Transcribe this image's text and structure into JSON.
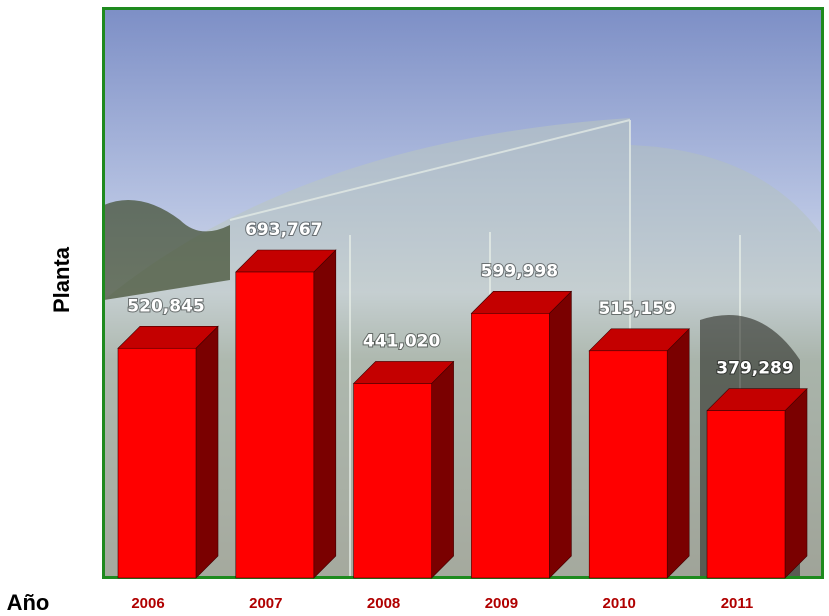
{
  "chart_data": {
    "type": "bar3d",
    "x_label": "Año",
    "y_label": "Planta",
    "categories": [
      "2006",
      "2007",
      "2008",
      "2009",
      "2010",
      "2011"
    ],
    "values": [
      520845,
      693767,
      441020,
      599998,
      515159,
      379289
    ],
    "value_labels": [
      "520,845",
      "693,767",
      "441,020",
      "599,998",
      "515,159",
      "379,289"
    ],
    "color": "#ff0000"
  }
}
